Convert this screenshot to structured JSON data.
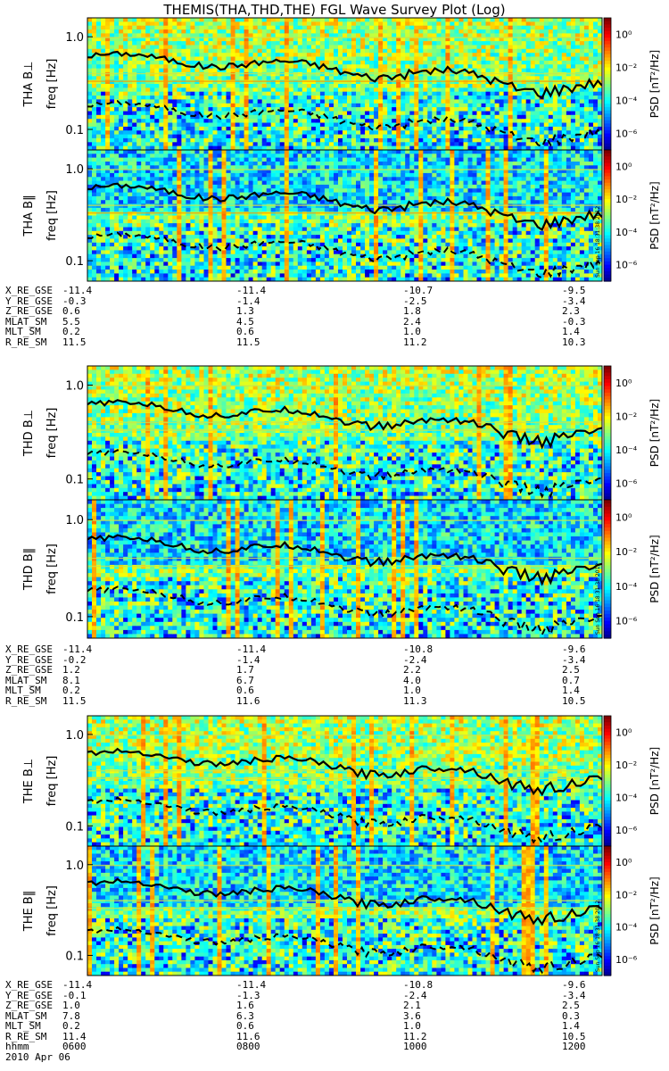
{
  "title": "THEMIS(THA,THD,THE) FGL Wave Survey Plot (Log)",
  "colorbar": {
    "label": "PSD [nT²/Hz]",
    "ticks": [
      "10⁰",
      "10⁻²",
      "10⁻⁴",
      "10⁻⁶"
    ],
    "tick_exponents": [
      0,
      -2,
      -4,
      -6
    ]
  },
  "stamp": "Sun Sep 16 18:31:38 2012",
  "freq_ticks": [
    "1.0",
    "0.1"
  ],
  "chart_data": {
    "type": "heatmap",
    "x_unit": "hhmm",
    "xlim": [
      "0600",
      "1200"
    ],
    "ylim_hz": [
      0.06,
      1.6
    ],
    "y_scale": "log",
    "zlim_log10": [
      -7,
      1
    ],
    "panels": [
      {
        "ylabel": "THA B⊥",
        "yunit": "freq [Hz]"
      },
      {
        "ylabel": "THA B‖",
        "yunit": "freq [Hz]"
      },
      {
        "ylabel": "THD B⊥",
        "yunit": "freq [Hz]"
      },
      {
        "ylabel": "THD B‖",
        "yunit": "freq [Hz]"
      },
      {
        "ylabel": "THE B⊥",
        "yunit": "freq [Hz]"
      },
      {
        "ylabel": "THE B‖",
        "yunit": "freq [Hz]"
      }
    ]
  },
  "ephemeris": [
    {
      "rows": [
        {
          "label": "X_RE_GSE",
          "values": [
            "-11.4",
            "-11.4",
            "-10.7",
            "-9.5"
          ]
        },
        {
          "label": "Y_RE_GSE",
          "values": [
            "-0.3",
            "-1.4",
            "-2.5",
            "-3.4"
          ]
        },
        {
          "label": "Z_RE_GSE",
          "values": [
            "0.6",
            "1.3",
            "1.8",
            "2.3"
          ]
        },
        {
          "label": "MLAT_SM",
          "values": [
            "5.5",
            "4.5",
            "2.4",
            "-0.3"
          ]
        },
        {
          "label": "MLT_SM",
          "values": [
            "0.2",
            "0.6",
            "1.0",
            "1.4"
          ]
        },
        {
          "label": "R_RE_SM",
          "values": [
            "11.5",
            "11.5",
            "11.2",
            "10.3"
          ]
        }
      ]
    },
    {
      "rows": [
        {
          "label": "X_RE_GSE",
          "values": [
            "-11.4",
            "-11.4",
            "-10.8",
            "-9.6"
          ]
        },
        {
          "label": "Y_RE_GSE",
          "values": [
            "-0.2",
            "-1.4",
            "-2.4",
            "-3.4"
          ]
        },
        {
          "label": "Z_RE_GSE",
          "values": [
            "1.2",
            "1.7",
            "2.2",
            "2.5"
          ]
        },
        {
          "label": "MLAT_SM",
          "values": [
            "8.1",
            "6.7",
            "4.0",
            "0.7"
          ]
        },
        {
          "label": "MLT_SM",
          "values": [
            "0.2",
            "0.6",
            "1.0",
            "1.4"
          ]
        },
        {
          "label": "R_RE_SM",
          "values": [
            "11.5",
            "11.6",
            "11.3",
            "10.5"
          ]
        }
      ]
    },
    {
      "rows": [
        {
          "label": "X_RE_GSE",
          "values": [
            "-11.4",
            "-11.4",
            "-10.8",
            "-9.6"
          ]
        },
        {
          "label": "Y_RE_GSE",
          "values": [
            "-0.1",
            "-1.3",
            "-2.4",
            "-3.4"
          ]
        },
        {
          "label": "Z_RE_GSE",
          "values": [
            "1.0",
            "1.6",
            "2.1",
            "2.5"
          ]
        },
        {
          "label": "MLAT_SM",
          "values": [
            "7.8",
            "6.3",
            "3.6",
            "0.3"
          ]
        },
        {
          "label": "MLT_SM",
          "values": [
            "0.2",
            "0.6",
            "1.0",
            "1.4"
          ]
        },
        {
          "label": "R_RE_SM",
          "values": [
            "11.4",
            "11.6",
            "11.2",
            "10.5"
          ]
        },
        {
          "label": "hhmm",
          "values": [
            "0600",
            "0800",
            "1000",
            "1200"
          ]
        }
      ],
      "date": "2010 Apr 06"
    }
  ]
}
